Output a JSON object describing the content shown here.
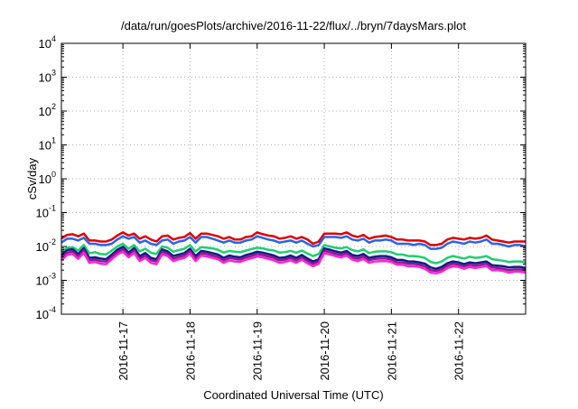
{
  "chart_data": {
    "type": "line",
    "title": "/data/run/goesPlots/archive/2016-11-22/flux/../bryn/7daysMars.plot",
    "xlabel": "Coordinated Universal Time (UTC)",
    "ylabel": "cSv/day",
    "yscale": "log",
    "ylim": [
      0.0001,
      10000
    ],
    "y_ticks": [
      {
        "value": 0.0001,
        "base": "10",
        "exp": "-4"
      },
      {
        "value": 0.001,
        "base": "10",
        "exp": "-3"
      },
      {
        "value": 0.01,
        "base": "10",
        "exp": "-2"
      },
      {
        "value": 0.1,
        "base": "10",
        "exp": "-1"
      },
      {
        "value": 1,
        "base": "10",
        "exp": "0"
      },
      {
        "value": 10,
        "base": "10",
        "exp": "1"
      },
      {
        "value": 100,
        "base": "10",
        "exp": "2"
      },
      {
        "value": 1000,
        "base": "10",
        "exp": "3"
      },
      {
        "value": 10000,
        "base": "10",
        "exp": "4"
      }
    ],
    "xlim": [
      "2016-11-16T02:00",
      "2016-11-23T00:00"
    ],
    "x_ticks": [
      "2016-11-17",
      "2016-11-18",
      "2016-11-19",
      "2016-11-20",
      "2016-11-21",
      "2016-11-22"
    ],
    "grid": true,
    "legend": "none",
    "x_labels": [
      "2016-11-16T02:00",
      "2016-11-16T04:00",
      "2016-11-16T06:00",
      "2016-11-16T08:00",
      "2016-11-16T10:00",
      "2016-11-16T12:00",
      "2016-11-16T14:00",
      "2016-11-16T16:00",
      "2016-11-16T18:00",
      "2016-11-16T20:00",
      "2016-11-16T22:00",
      "2016-11-17T00:00",
      "2016-11-17T02:00",
      "2016-11-17T04:00",
      "2016-11-17T06:00",
      "2016-11-17T08:00",
      "2016-11-17T10:00",
      "2016-11-17T12:00",
      "2016-11-17T14:00",
      "2016-11-17T16:00",
      "2016-11-17T18:00",
      "2016-11-17T20:00",
      "2016-11-17T22:00",
      "2016-11-18T00:00",
      "2016-11-18T02:00",
      "2016-11-18T04:00",
      "2016-11-18T06:00",
      "2016-11-18T08:00",
      "2016-11-18T10:00",
      "2016-11-18T12:00",
      "2016-11-18T14:00",
      "2016-11-18T16:00",
      "2016-11-18T18:00",
      "2016-11-18T20:00",
      "2016-11-18T22:00",
      "2016-11-19T00:00",
      "2016-11-19T02:00",
      "2016-11-19T04:00",
      "2016-11-19T06:00",
      "2016-11-19T08:00",
      "2016-11-19T10:00",
      "2016-11-19T12:00",
      "2016-11-19T14:00",
      "2016-11-19T16:00",
      "2016-11-19T18:00",
      "2016-11-19T20:00",
      "2016-11-19T22:00",
      "2016-11-20T00:00",
      "2016-11-20T02:00",
      "2016-11-20T04:00",
      "2016-11-20T06:00",
      "2016-11-20T08:00",
      "2016-11-20T10:00",
      "2016-11-20T12:00",
      "2016-11-20T14:00",
      "2016-11-20T16:00",
      "2016-11-20T18:00",
      "2016-11-20T20:00",
      "2016-11-20T22:00",
      "2016-11-21T00:00",
      "2016-11-21T02:00",
      "2016-11-21T04:00",
      "2016-11-21T06:00",
      "2016-11-21T08:00",
      "2016-11-21T10:00",
      "2016-11-21T12:00",
      "2016-11-21T14:00",
      "2016-11-21T16:00",
      "2016-11-21T18:00",
      "2016-11-21T20:00",
      "2016-11-21T22:00",
      "2016-11-22T00:00",
      "2016-11-22T02:00",
      "2016-11-22T04:00",
      "2016-11-22T06:00",
      "2016-11-22T08:00",
      "2016-11-22T10:00",
      "2016-11-22T12:00",
      "2016-11-22T14:00",
      "2016-11-22T16:00",
      "2016-11-22T18:00",
      "2016-11-22T20:00",
      "2016-11-22T22:00",
      "2016-11-23T00:00"
    ],
    "series": [
      {
        "color": "#dd0000",
        "values": [
          0.017,
          0.022,
          0.023,
          0.02,
          0.024,
          0.015,
          0.015,
          0.014,
          0.014,
          0.016,
          0.021,
          0.026,
          0.021,
          0.024,
          0.017,
          0.02,
          0.016,
          0.014,
          0.02,
          0.021,
          0.016,
          0.018,
          0.019,
          0.025,
          0.017,
          0.024,
          0.024,
          0.022,
          0.02,
          0.017,
          0.019,
          0.016,
          0.016,
          0.019,
          0.02,
          0.026,
          0.023,
          0.021,
          0.02,
          0.017,
          0.018,
          0.02,
          0.017,
          0.019,
          0.016,
          0.012,
          0.014,
          0.024,
          0.024,
          0.024,
          0.023,
          0.026,
          0.021,
          0.019,
          0.022,
          0.017,
          0.019,
          0.02,
          0.021,
          0.019,
          0.016,
          0.016,
          0.015,
          0.015,
          0.015,
          0.014,
          0.011,
          0.011,
          0.012,
          0.016,
          0.018,
          0.017,
          0.016,
          0.018,
          0.017,
          0.018,
          0.021,
          0.016,
          0.015,
          0.014,
          0.013,
          0.014,
          0.014,
          0.014
        ]
      },
      {
        "color": "#2b62e8",
        "values": [
          0.013,
          0.017,
          0.017,
          0.015,
          0.018,
          0.012,
          0.012,
          0.011,
          0.011,
          0.012,
          0.016,
          0.02,
          0.017,
          0.019,
          0.013,
          0.015,
          0.012,
          0.011,
          0.015,
          0.016,
          0.012,
          0.014,
          0.015,
          0.019,
          0.013,
          0.019,
          0.019,
          0.017,
          0.015,
          0.013,
          0.015,
          0.013,
          0.013,
          0.015,
          0.016,
          0.02,
          0.018,
          0.016,
          0.015,
          0.013,
          0.014,
          0.015,
          0.013,
          0.015,
          0.012,
          0.01,
          0.011,
          0.019,
          0.019,
          0.019,
          0.018,
          0.02,
          0.016,
          0.015,
          0.017,
          0.013,
          0.015,
          0.015,
          0.016,
          0.015,
          0.012,
          0.012,
          0.012,
          0.011,
          0.012,
          0.011,
          0.0085,
          0.0085,
          0.0092,
          0.012,
          0.014,
          0.013,
          0.012,
          0.014,
          0.013,
          0.014,
          0.016,
          0.012,
          0.012,
          0.011,
          0.01,
          0.011,
          0.011,
          0.01
        ]
      },
      {
        "color": "#1ecf6e",
        "values": [
          0.007,
          0.0092,
          0.0096,
          0.0076,
          0.011,
          0.0063,
          0.0068,
          0.006,
          0.0058,
          0.0076,
          0.01,
          0.012,
          0.0085,
          0.011,
          0.0072,
          0.0086,
          0.0065,
          0.006,
          0.01,
          0.0092,
          0.007,
          0.0078,
          0.0086,
          0.011,
          0.0072,
          0.0096,
          0.0092,
          0.0088,
          0.008,
          0.0066,
          0.0074,
          0.007,
          0.0068,
          0.0076,
          0.0084,
          0.0092,
          0.0088,
          0.008,
          0.0076,
          0.0066,
          0.0068,
          0.0074,
          0.0066,
          0.0076,
          0.0062,
          0.0052,
          0.006,
          0.011,
          0.01,
          0.0092,
          0.0088,
          0.0096,
          0.0078,
          0.0072,
          0.0082,
          0.0064,
          0.007,
          0.0072,
          0.0072,
          0.0068,
          0.0058,
          0.0058,
          0.0052,
          0.0052,
          0.005,
          0.0046,
          0.0035,
          0.0032,
          0.0036,
          0.0046,
          0.0052,
          0.0048,
          0.0044,
          0.005,
          0.0046,
          0.0048,
          0.0052,
          0.0042,
          0.004,
          0.0038,
          0.0035,
          0.0036,
          0.0036,
          0.0034
        ]
      },
      {
        "color": "#0d1a8a",
        "values": [
          0.0055,
          0.0078,
          0.0083,
          0.006,
          0.009,
          0.0046,
          0.0048,
          0.0044,
          0.0042,
          0.0058,
          0.008,
          0.0098,
          0.0066,
          0.009,
          0.0052,
          0.0064,
          0.0046,
          0.0042,
          0.0082,
          0.0072,
          0.0052,
          0.0058,
          0.0064,
          0.0086,
          0.0052,
          0.0074,
          0.007,
          0.0064,
          0.0058,
          0.0046,
          0.0054,
          0.005,
          0.0048,
          0.0056,
          0.0062,
          0.007,
          0.0066,
          0.006,
          0.0054,
          0.0046,
          0.0048,
          0.0054,
          0.0046,
          0.0056,
          0.0044,
          0.0036,
          0.0042,
          0.0088,
          0.008,
          0.0072,
          0.0066,
          0.0074,
          0.0056,
          0.0052,
          0.006,
          0.0046,
          0.005,
          0.0052,
          0.0052,
          0.0048,
          0.004,
          0.004,
          0.0036,
          0.0036,
          0.0034,
          0.0031,
          0.0024,
          0.0022,
          0.0025,
          0.0032,
          0.0036,
          0.0034,
          0.003,
          0.0034,
          0.0032,
          0.0034,
          0.0036,
          0.0028,
          0.0027,
          0.0026,
          0.0024,
          0.0025,
          0.0025,
          0.0023
        ]
      },
      {
        "color": "#8a1a8a",
        "values": [
          0.0046,
          0.0066,
          0.0071,
          0.0051,
          0.0077,
          0.0039,
          0.0041,
          0.0037,
          0.0036,
          0.0049,
          0.0068,
          0.0083,
          0.0056,
          0.0077,
          0.0044,
          0.0054,
          0.0039,
          0.0036,
          0.007,
          0.0061,
          0.0044,
          0.0049,
          0.0054,
          0.0073,
          0.0044,
          0.0063,
          0.006,
          0.0054,
          0.0049,
          0.0039,
          0.0046,
          0.0043,
          0.0041,
          0.0048,
          0.0053,
          0.006,
          0.0056,
          0.0051,
          0.0046,
          0.0039,
          0.0041,
          0.0046,
          0.0039,
          0.0048,
          0.0037,
          0.0031,
          0.0036,
          0.0075,
          0.0068,
          0.0061,
          0.0056,
          0.0063,
          0.0048,
          0.0044,
          0.0051,
          0.0039,
          0.0043,
          0.0044,
          0.0044,
          0.0041,
          0.0034,
          0.0034,
          0.0031,
          0.0031,
          0.0029,
          0.0026,
          0.002,
          0.0019,
          0.0021,
          0.0027,
          0.0031,
          0.0029,
          0.0026,
          0.0029,
          0.0027,
          0.0029,
          0.0031,
          0.0024,
          0.0023,
          0.0022,
          0.002,
          0.0021,
          0.0021,
          0.002
        ]
      },
      {
        "color": "#ff22dd",
        "values": [
          0.0039,
          0.0056,
          0.006,
          0.0043,
          0.0065,
          0.0033,
          0.0035,
          0.0031,
          0.003,
          0.0042,
          0.0058,
          0.0071,
          0.0048,
          0.0065,
          0.0037,
          0.0046,
          0.0033,
          0.003,
          0.0059,
          0.0052,
          0.0037,
          0.0042,
          0.0046,
          0.0062,
          0.0037,
          0.0054,
          0.0051,
          0.0046,
          0.0042,
          0.0033,
          0.0039,
          0.0036,
          0.0035,
          0.0041,
          0.0045,
          0.0051,
          0.0048,
          0.0043,
          0.0039,
          0.0033,
          0.0035,
          0.0039,
          0.0033,
          0.0041,
          0.0032,
          0.0026,
          0.0031,
          0.0064,
          0.0058,
          0.0052,
          0.0048,
          0.0054,
          0.0041,
          0.0037,
          0.0043,
          0.0033,
          0.0036,
          0.0037,
          0.0037,
          0.0035,
          0.0029,
          0.0029,
          0.0026,
          0.0026,
          0.0025,
          0.0022,
          0.0017,
          0.0016,
          0.0018,
          0.0023,
          0.0026,
          0.0025,
          0.0022,
          0.0025,
          0.0023,
          0.0025,
          0.0026,
          0.002,
          0.002,
          0.0019,
          0.0017,
          0.0018,
          0.0018,
          0.0017
        ]
      }
    ]
  }
}
